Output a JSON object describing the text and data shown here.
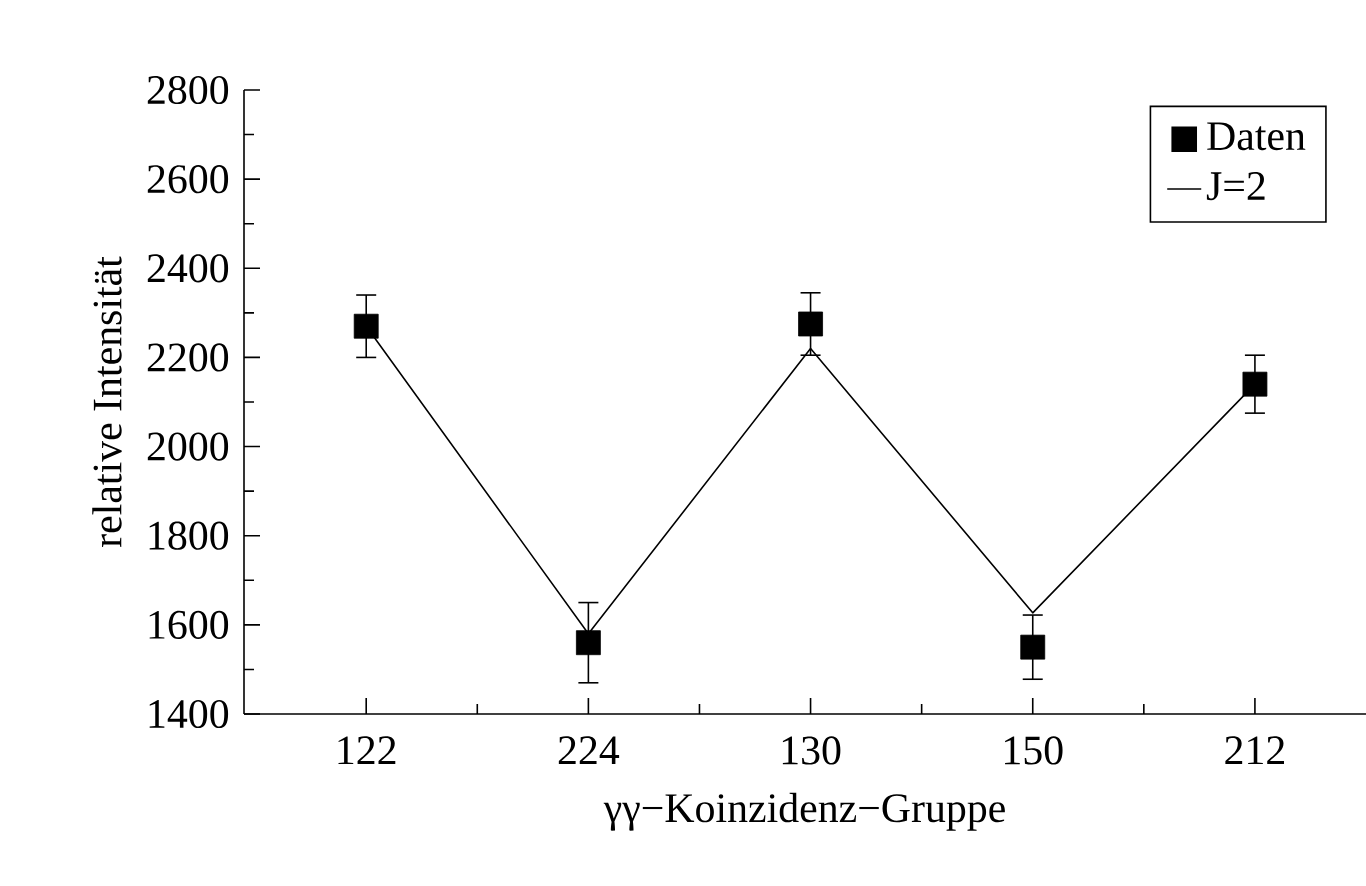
{
  "chart_data": {
    "type": "scatter",
    "xlabel": "γγ−Koinzidenz−Gruppe",
    "ylabel": "relative Intensität",
    "categories": [
      "122",
      "224",
      "130",
      "150",
      "212"
    ],
    "series": [
      {
        "name": "Daten",
        "type": "scatter",
        "color": "#000000",
        "marker": "square",
        "values": [
          2270,
          1560,
          2275,
          1550,
          2140
        ],
        "errors": [
          70,
          90,
          70,
          72,
          65
        ]
      },
      {
        "name": "J=2",
        "type": "line",
        "color": "#000000",
        "line_style": "solid",
        "values": [
          2270,
          1580,
          2220,
          1627,
          2140
        ]
      }
    ],
    "ylim": [
      1400,
      2800
    ],
    "yticks": [
      1400,
      1600,
      1800,
      2000,
      2200,
      2400,
      2600,
      2800
    ],
    "legend": "top right"
  }
}
